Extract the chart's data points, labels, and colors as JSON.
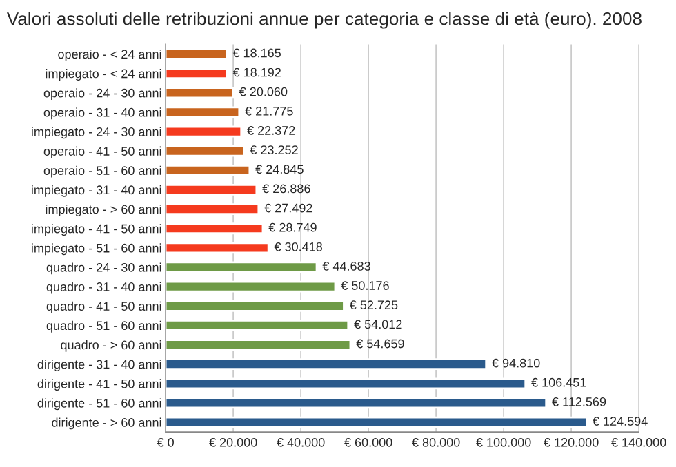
{
  "chart_data": {
    "type": "bar",
    "orientation": "horizontal",
    "title": "Valori assoluti delle retribuzioni annue per categoria e classe di età (euro). 2008",
    "categories": [
      "operaio - < 24 anni",
      "impiegato - < 24 anni",
      "operaio - 24 - 30 anni",
      "operaio - 31 - 40 anni",
      "impiegato - 24 - 30 anni",
      "operaio - 41 - 50 anni",
      "operaio - 51 - 60 anni",
      "impiegato - 31 - 40 anni",
      "impiegato - > 60 anni",
      "impiegato - 41 - 50 anni",
      "impiegato - 51 - 60 anni",
      "quadro - 24 - 30 anni",
      "quadro - 31 - 40 anni",
      "quadro - 41 - 50 anni",
      "quadro - 51 - 60 anni",
      "quadro - > 60 anni",
      "dirigente - 31 - 40 anni",
      "dirigente - 41 - 50 anni",
      "dirigente - 51 - 60 anni",
      "dirigente - > 60 anni"
    ],
    "values": [
      18165,
      18192,
      20060,
      21775,
      22372,
      23252,
      24845,
      26886,
      27492,
      28749,
      30418,
      44683,
      50176,
      52725,
      54012,
      54659,
      94810,
      106451,
      112569,
      124594
    ],
    "colors": [
      "#c8641e",
      "#f53a1e",
      "#c8641e",
      "#c8641e",
      "#f53a1e",
      "#c8641e",
      "#c8641e",
      "#f53a1e",
      "#f53a1e",
      "#f53a1e",
      "#f53a1e",
      "#6e9a46",
      "#6e9a46",
      "#6e9a46",
      "#6e9a46",
      "#6e9a46",
      "#2a5a8c",
      "#2a5a8c",
      "#2a5a8c",
      "#2a5a8c"
    ],
    "value_labels": [
      "€ 18.165",
      "€ 18.192",
      "€ 20.060",
      "€ 21.775",
      "€ 22.372",
      "€ 23.252",
      "€ 24.845",
      "€ 26.886",
      "€ 27.492",
      "€ 28.749",
      "€ 30.418",
      "€ 44.683",
      "€ 50.176",
      "€ 52.725",
      "€ 54.012",
      "€ 54.659",
      "€ 94.810",
      "€ 106.451",
      "€ 112.569",
      "€ 124.594"
    ],
    "xlim": [
      0,
      140000
    ],
    "xticks": [
      {
        "value": 0,
        "label": "€ 0"
      },
      {
        "value": 20000,
        "label": "€ 20.000"
      },
      {
        "value": 40000,
        "label": "€ 40.000"
      },
      {
        "value": 60000,
        "label": "€ 60.000"
      },
      {
        "value": 80000,
        "label": "€ 80.000"
      },
      {
        "value": 100000,
        "label": "€ 100.000"
      },
      {
        "value": 120000,
        "label": "€ 120.000"
      },
      {
        "value": 140000,
        "label": "€ 140.000"
      }
    ],
    "grid": "x"
  }
}
